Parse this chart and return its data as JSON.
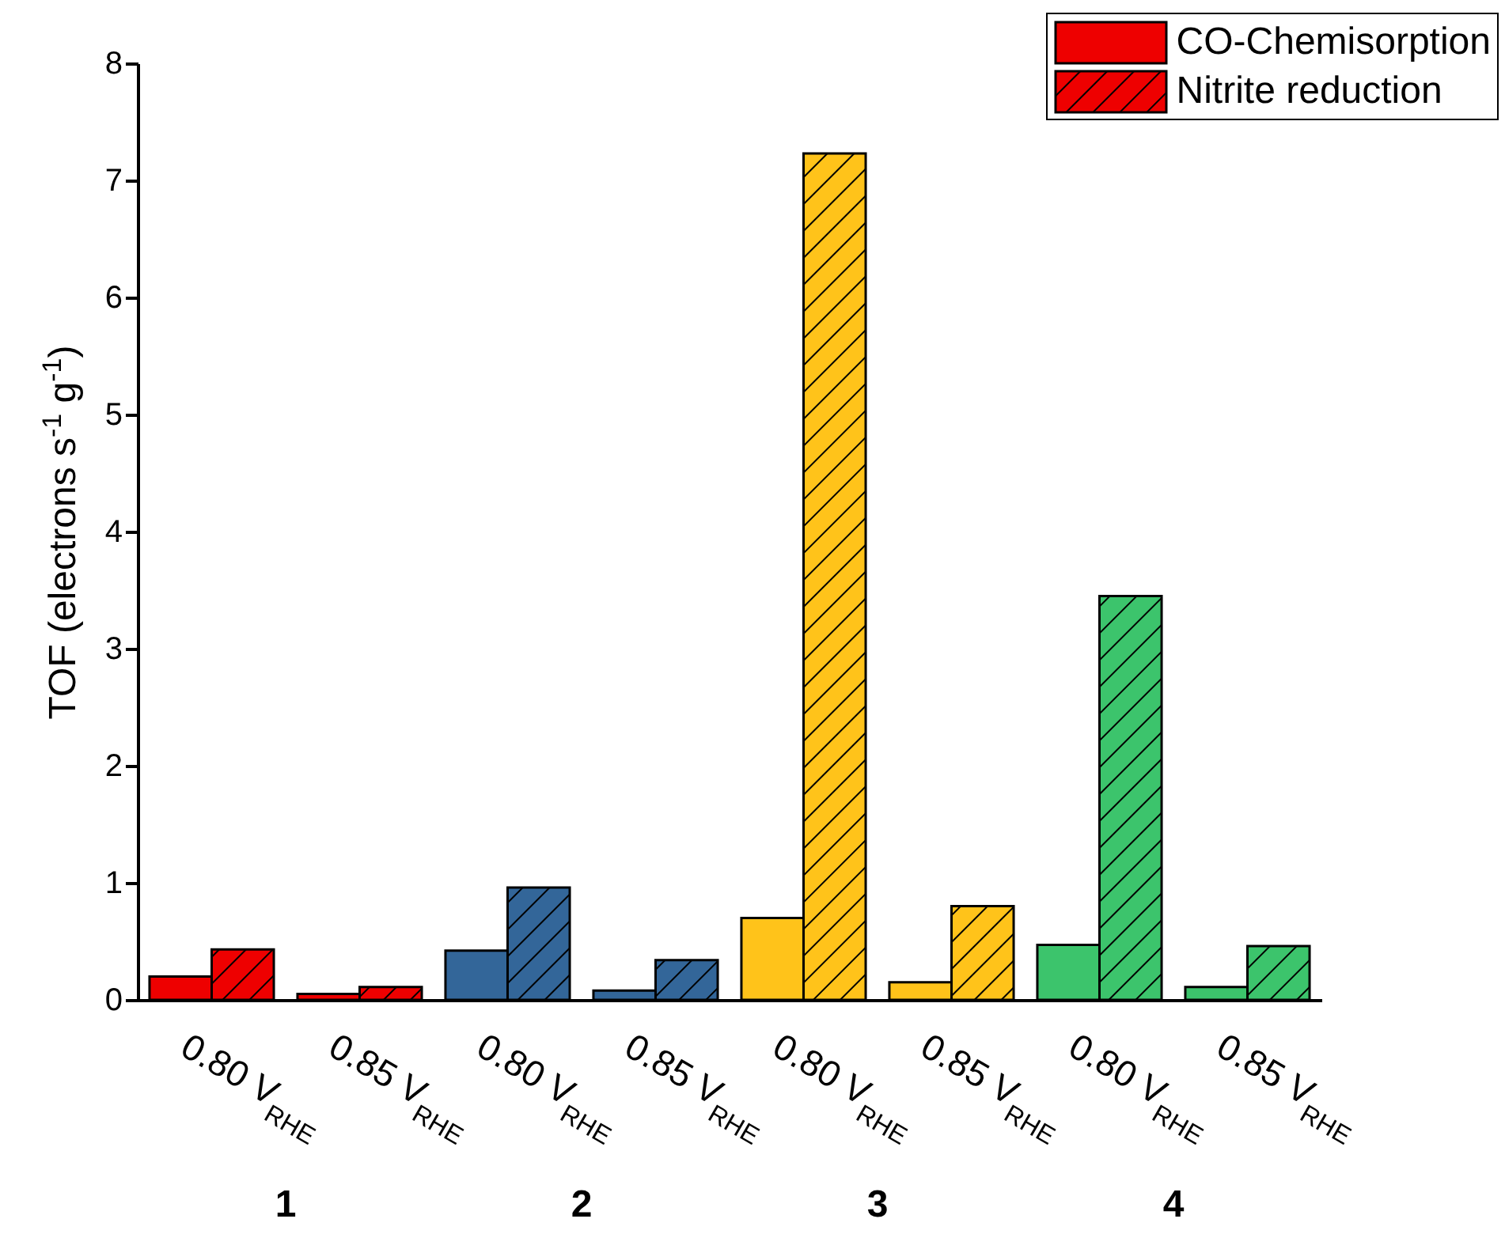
{
  "chart_data": {
    "type": "bar",
    "ylabel": "TOF (electrons s$^{-1}$ g$^{-1}$)",
    "categories": [
      "0.80 V$_{RHE}$",
      "0.85 V$_{RHE}$",
      "0.80 V$_{RHE}$",
      "0.85 V$_{RHE}$",
      "0.80 V$_{RHE}$",
      "0.85 V$_{RHE}$",
      "0.80 V$_{RHE}$",
      "0.85 V$_{RHE}$"
    ],
    "series": [
      {
        "name": "CO-Chemisorption",
        "color": "#ee0000",
        "colors": [
          "#ee0000",
          "#ee0000",
          "#336699",
          "#336699",
          "#ffc31a",
          "#ffc31a",
          "#3cc46c",
          "#3cc46c"
        ],
        "values": [
          0.2,
          0.05,
          0.42,
          0.08,
          0.7,
          0.15,
          0.47,
          0.11
        ]
      },
      {
        "name": "Nitrite reduction",
        "color": "#ee0000",
        "colors": [
          "#ee0000",
          "#ee0000",
          "#336699",
          "#336699",
          "#ffc31a",
          "#ffc31a",
          "#3cc46c",
          "#3cc46c"
        ],
        "values": [
          0.43,
          0.11,
          0.96,
          0.34,
          7.23,
          0.8,
          3.45,
          0.46
        ]
      }
    ],
    "ylim": [
      0,
      8
    ],
    "yticks": [
      0,
      1,
      2,
      3,
      4,
      5,
      6,
      7,
      8
    ],
    "grid": false,
    "legend": "top right",
    "annotations": [
      "1",
      "2",
      "3",
      "4"
    ]
  }
}
